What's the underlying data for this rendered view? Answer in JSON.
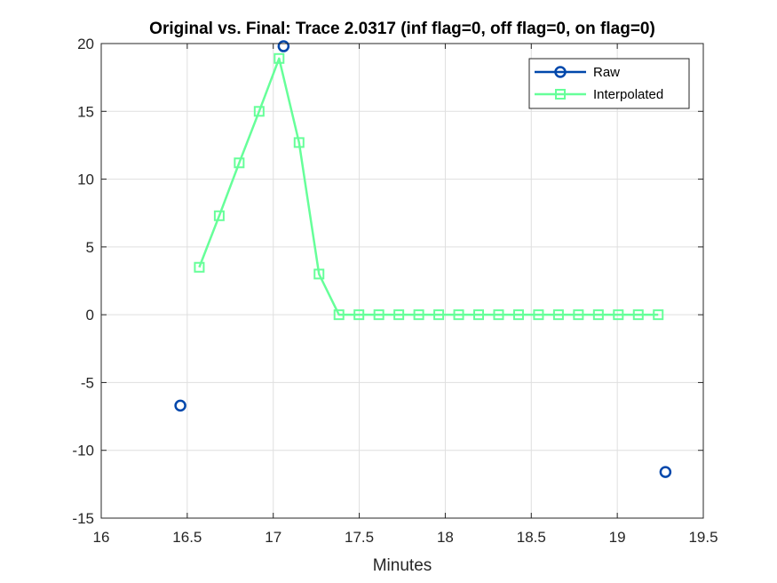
{
  "chart_data": {
    "type": "line",
    "title": "Original vs. Final: Trace 2.0317 (inf flag=0, off flag=0, on flag=0)",
    "xlabel": "Minutes",
    "ylabel": "",
    "xlim": [
      16,
      19.5
    ],
    "ylim": [
      -15,
      20
    ],
    "xticks": [
      16,
      16.5,
      17,
      17.5,
      18,
      18.5,
      19,
      19.5
    ],
    "xtick_labels": [
      "16",
      "16.5",
      "17",
      "17.5",
      "18",
      "18.5",
      "19",
      "19.5"
    ],
    "yticks": [
      -15,
      -10,
      -5,
      0,
      5,
      10,
      15,
      20
    ],
    "ytick_labels": [
      "-15",
      "-10",
      "-5",
      "0",
      "5",
      "10",
      "15",
      "20"
    ],
    "grid": true,
    "legend_position": "top-right",
    "series": [
      {
        "name": "Raw",
        "color": "#0047AB",
        "marker": "circle",
        "line": "none",
        "x": [
          16.46,
          17.06,
          19.28
        ],
        "y": [
          -6.7,
          19.8,
          -11.6
        ]
      },
      {
        "name": "Interpolated",
        "color": "#66FF99",
        "marker": "square",
        "line": "solid",
        "x": [
          16.57,
          16.686,
          16.802,
          16.918,
          17.034,
          17.15,
          17.266,
          17.382,
          17.498,
          17.614,
          17.73,
          17.846,
          17.962,
          18.078,
          18.194,
          18.31,
          18.426,
          18.542,
          18.658,
          18.774,
          18.89,
          19.006,
          19.122,
          19.238
        ],
        "y": [
          3.5,
          7.3,
          11.2,
          15.0,
          18.9,
          12.7,
          3.0,
          0,
          0,
          0,
          0,
          0,
          0,
          0,
          0,
          0,
          0,
          0,
          0,
          0,
          0,
          0,
          0,
          0
        ]
      }
    ]
  }
}
